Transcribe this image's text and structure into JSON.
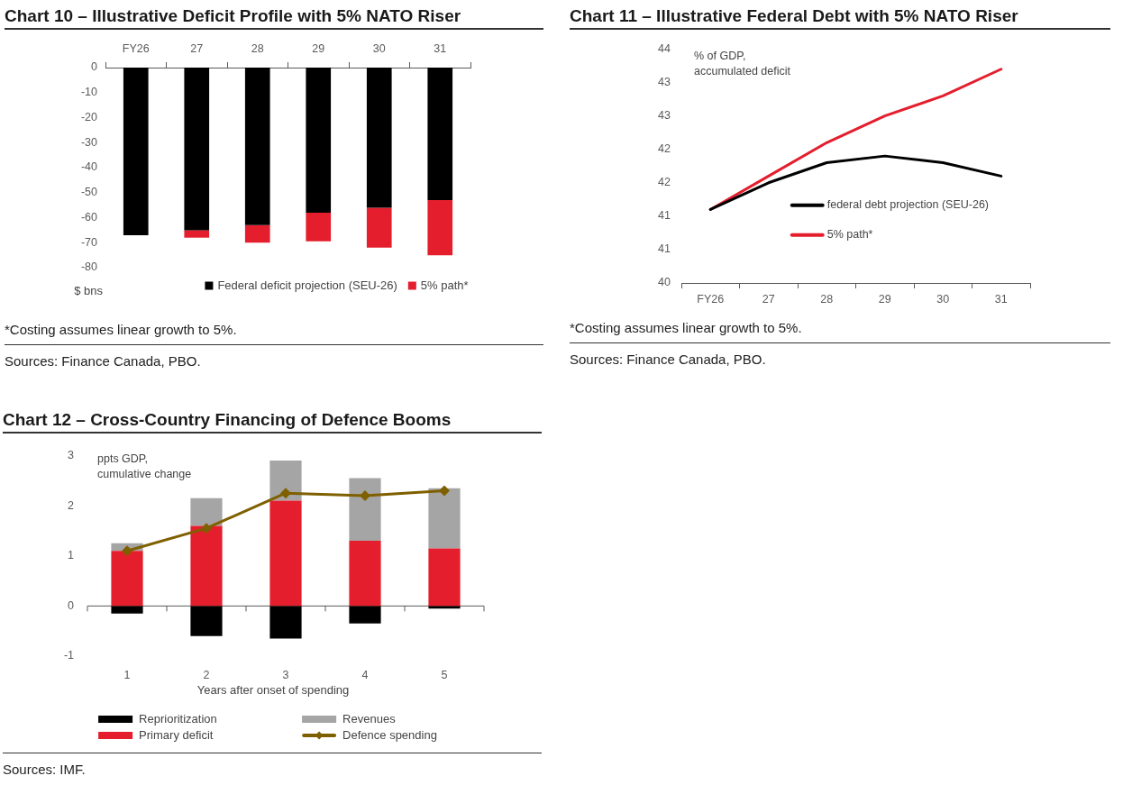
{
  "chart_data": [
    {
      "type": "bar",
      "title": "Chart 10 – Illustrative Deficit Profile with 5% NATO Riser",
      "ylabel": "$ bns",
      "categories": [
        "FY26",
        "27",
        "28",
        "29",
        "30",
        "31"
      ],
      "stacked": true,
      "series": [
        {
          "name": "Federal deficit projection (SEU-26)",
          "color": "#000000",
          "values": [
            -67,
            -65,
            -63,
            -58,
            -56,
            -53
          ]
        },
        {
          "name": "5% path*",
          "color": "#e41e2d",
          "values": [
            null,
            -3,
            -7,
            -11.5,
            -16,
            -22
          ]
        }
      ],
      "ylim": [
        -80,
        0
      ],
      "yticks": [
        -80,
        -70,
        -60,
        -50,
        -40,
        -30,
        -20,
        -10,
        0
      ],
      "legend": "bottom",
      "annotations": [
        "*Costing assumes linear growth to 5%.",
        "Sources: Finance Canada, PBO."
      ]
    },
    {
      "type": "line",
      "title": "Chart 11 – Illustrative Federal Debt with 5% NATO Riser",
      "ylabel": "% of GDP, accumulated deficit",
      "categories": [
        "FY26",
        "27",
        "28",
        "29",
        "30",
        "31"
      ],
      "series": [
        {
          "name": "federal debt projection (SEU-26)",
          "color": "#000000",
          "values": [
            41.1,
            41.5,
            41.8,
            41.9,
            41.8,
            41.6
          ]
        },
        {
          "name": "5% path*",
          "color": "#e41e2d",
          "values": [
            41.1,
            41.6,
            42.1,
            42.5,
            42.8,
            43.2
          ]
        }
      ],
      "ylim": [
        40,
        43.5
      ],
      "yticks": [
        40,
        {
          "value": 40.5,
          "label": "41"
        },
        41,
        {
          "value": 41.5,
          "label": "42"
        },
        42,
        {
          "value": 42.5,
          "label": "43"
        },
        43,
        {
          "value": 43.5,
          "label": "44"
        }
      ],
      "legend": "right",
      "annotations": [
        "*Costing assumes linear growth to 5%.",
        "Sources: Finance Canada, PBO."
      ]
    },
    {
      "type": "bar",
      "title": "Chart 12 – Cross-Country Financing of Defence Booms",
      "xlabel": "Years after onset of spending",
      "ylabel": "ppts GDP, cumulative change",
      "categories": [
        "1",
        "2",
        "3",
        "4",
        "5"
      ],
      "stacked": true,
      "series": [
        {
          "name": "Reprioritization",
          "color": "#000000",
          "values": [
            -0.15,
            -0.6,
            -0.65,
            -0.35,
            -0.05
          ]
        },
        {
          "name": "Primary deficit",
          "color": "#e41e2d",
          "values": [
            1.1,
            1.6,
            2.1,
            1.3,
            1.15
          ]
        },
        {
          "name": "Revenues",
          "color": "#a5a5a5",
          "values": [
            0.15,
            0.55,
            0.8,
            1.25,
            1.2
          ]
        },
        {
          "name": "Defence spending",
          "type": "line",
          "color": "#7f6000",
          "values": [
            1.1,
            1.55,
            2.25,
            2.2,
            2.3
          ]
        }
      ],
      "marker": "diamond",
      "ylim": [
        -1,
        3
      ],
      "yticks": [
        -1,
        0,
        1,
        2,
        3
      ],
      "legend": "bottom",
      "annotations": [
        "Sources: IMF."
      ]
    }
  ]
}
